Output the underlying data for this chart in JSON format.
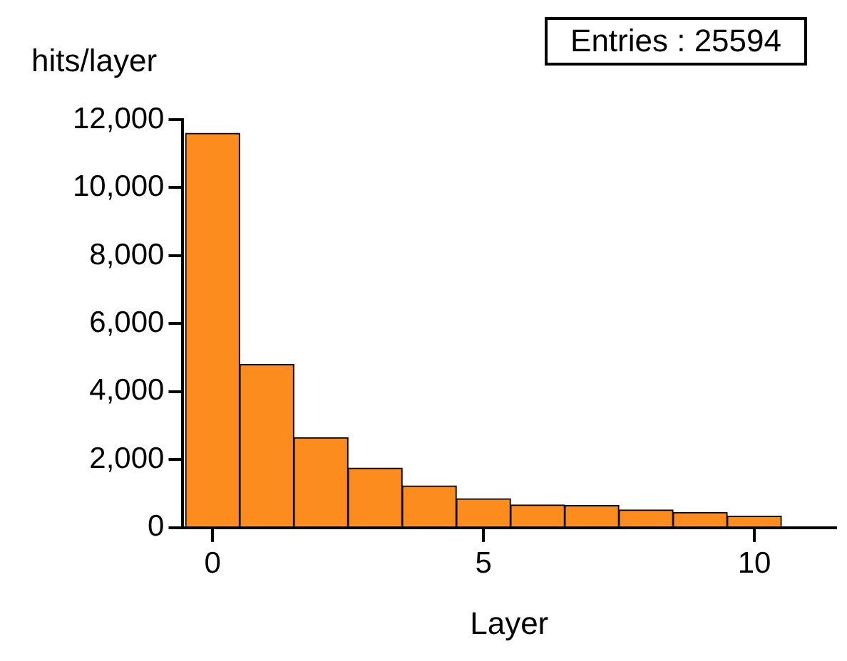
{
  "chart_data": {
    "type": "histogram",
    "xlabel": "Layer",
    "ylabel": "hits/layer",
    "annotations": [
      "Entries : 25594"
    ],
    "bins": [
      -0.5,
      0.5,
      1.5,
      2.5,
      3.5,
      4.5,
      5.5,
      6.5,
      7.5,
      8.5,
      9.5,
      10.5
    ],
    "values": [
      11600,
      4800,
      2650,
      1750,
      1230,
      850,
      670,
      650,
      520,
      450,
      340
    ],
    "color": "#fd8c1e",
    "xlim": [
      -0.55,
      11.5
    ],
    "xticks": [
      0,
      5,
      10
    ],
    "ylim": [
      0,
      12000
    ],
    "yticks": [
      0,
      {
        "value": 2000,
        "label": "2,000"
      },
      {
        "value": 4000,
        "label": "4,000"
      },
      {
        "value": 6000,
        "label": "6,000"
      },
      {
        "value": 8000,
        "label": "8,000"
      },
      {
        "value": 10000,
        "label": "10,000"
      },
      {
        "value": 12000,
        "label": "12,000"
      }
    ],
    "grid": false,
    "legend": false
  }
}
